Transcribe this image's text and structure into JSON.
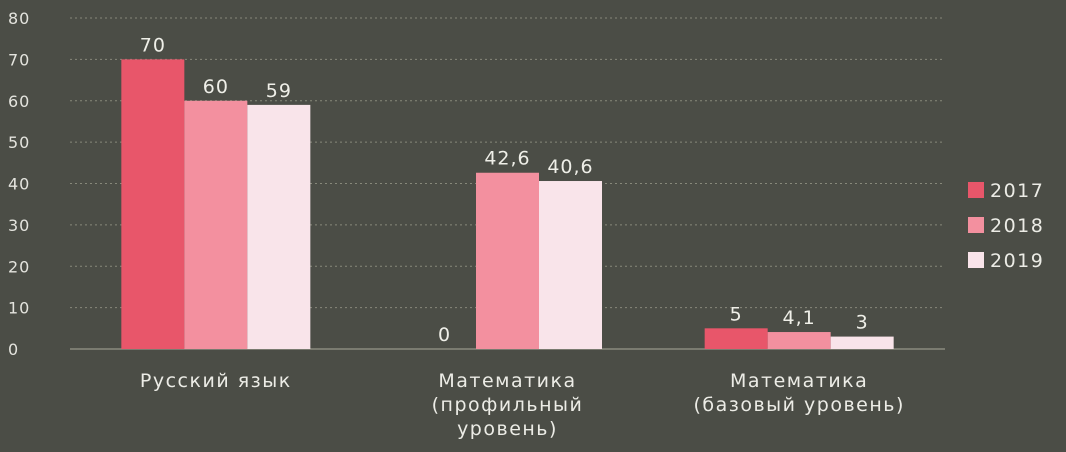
{
  "chart_data": {
    "type": "bar",
    "categories": [
      [
        "Русский язык"
      ],
      [
        "Математика",
        "(профильный",
        "уровень)"
      ],
      [
        "Математика",
        "(базовый уровень)"
      ]
    ],
    "series": [
      {
        "name": "2017",
        "values": [
          70,
          0,
          5
        ],
        "labels": [
          "70",
          "0",
          "5"
        ],
        "color": "#e8566a"
      },
      {
        "name": "2018",
        "values": [
          60,
          42.6,
          4.1
        ],
        "labels": [
          "60",
          "42,6",
          "4,1"
        ],
        "color": "#f3909f"
      },
      {
        "name": "2019",
        "values": [
          59,
          40.6,
          3
        ],
        "labels": [
          "59",
          "40,6",
          "3"
        ],
        "color": "#f9e4ea"
      }
    ],
    "ylim": [
      0,
      80
    ],
    "yticks": [
      0,
      10,
      20,
      30,
      40,
      50,
      60,
      70,
      80
    ],
    "grid": true,
    "legend": "right"
  }
}
